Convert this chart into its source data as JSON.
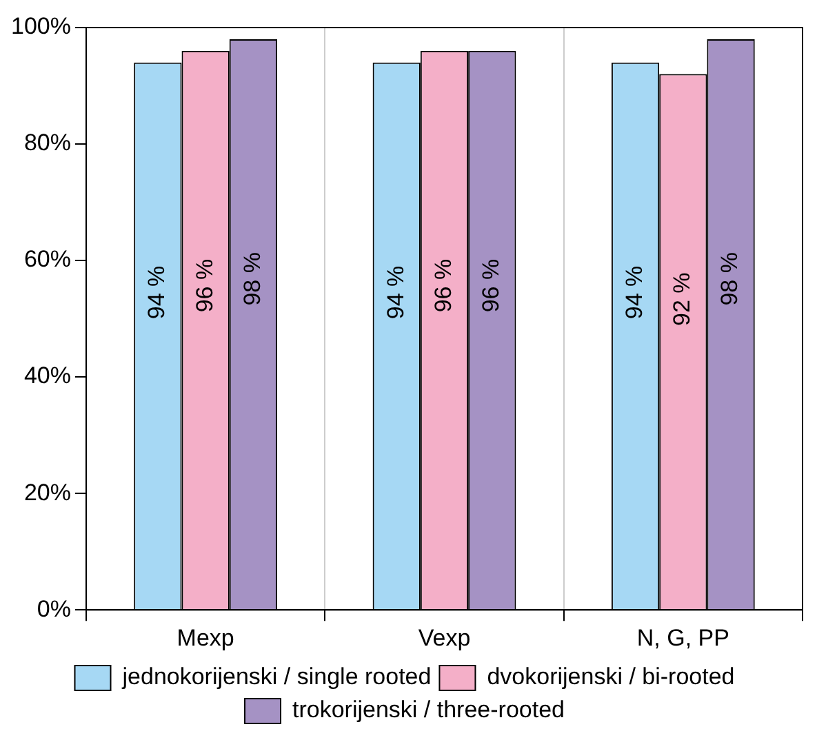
{
  "chart_data": {
    "type": "bar",
    "categories": [
      "Mexp",
      "Vexp",
      "N, G, PP"
    ],
    "series": [
      {
        "name": "jednokorijenski / single rooted",
        "color": "#a6d8f4",
        "values": [
          94,
          94,
          94
        ],
        "value_labels": [
          "94 %",
          "94 %",
          "94 %"
        ]
      },
      {
        "name": "dvokorijenski / bi-rooted",
        "color": "#f4afc8",
        "values": [
          96,
          96,
          92
        ],
        "value_labels": [
          "96 %",
          "96 %",
          "92 %"
        ]
      },
      {
        "name": "trokorijenski / three-rooted",
        "color": "#a592c4",
        "values": [
          98,
          96,
          98
        ],
        "value_labels": [
          "98 %",
          "96 %",
          "98 %"
        ]
      }
    ],
    "ylim": [
      0,
      100
    ],
    "yticks": [
      {
        "value": 0,
        "label": "0%"
      },
      {
        "value": 20,
        "label": "20%"
      },
      {
        "value": 40,
        "label": "40%"
      },
      {
        "value": 60,
        "label": "60%"
      },
      {
        "value": 80,
        "label": "80%"
      },
      {
        "value": 100,
        "label": "100%"
      }
    ],
    "grid": "x",
    "legend": "bottom"
  }
}
